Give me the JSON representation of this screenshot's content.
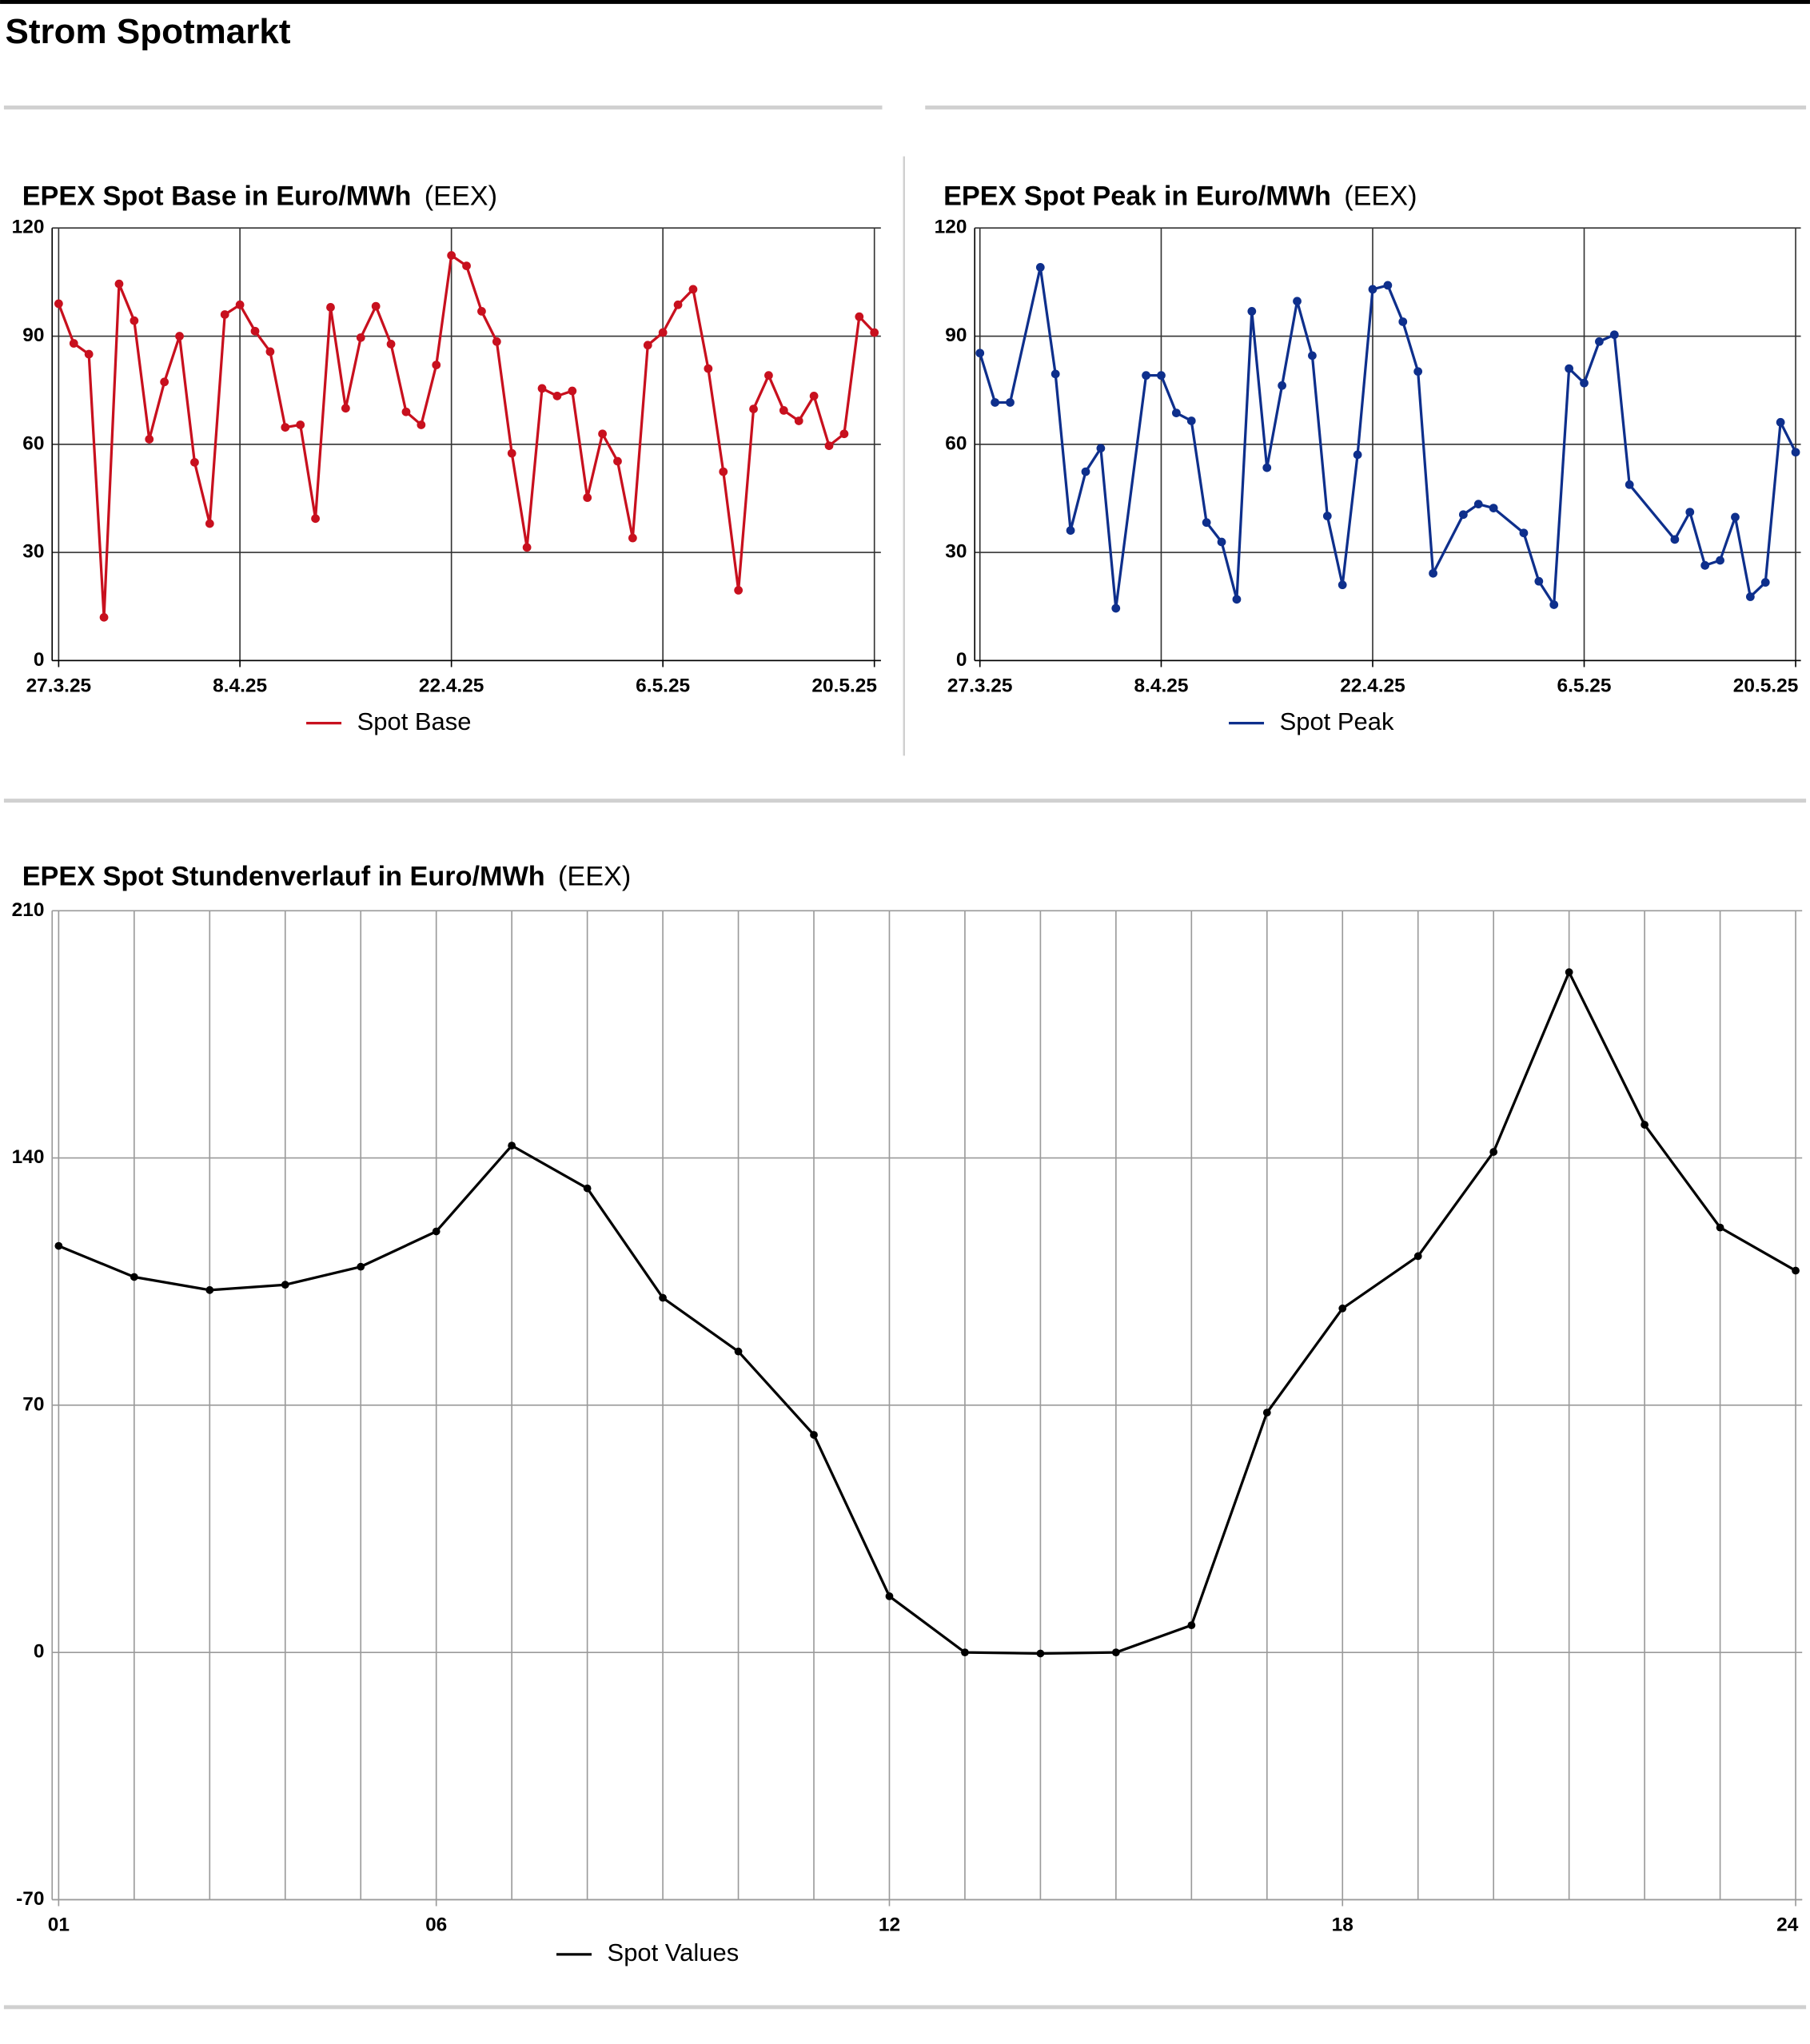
{
  "header": {
    "title": "Strom Spotmarkt"
  },
  "chart_data": [
    {
      "type": "line",
      "title": "EPEX Spot Base in Euro/MWh",
      "source": "(EEX)",
      "categories": [
        "27.3.25",
        null,
        null,
        null,
        null,
        null,
        null,
        null,
        null,
        null,
        null,
        null,
        "8.4.25",
        null,
        null,
        null,
        null,
        null,
        null,
        null,
        null,
        null,
        null,
        null,
        null,
        null,
        "22.4.25",
        null,
        null,
        null,
        null,
        null,
        null,
        null,
        null,
        null,
        null,
        null,
        null,
        null,
        "6.5.25",
        null,
        null,
        null,
        null,
        null,
        null,
        null,
        null,
        null,
        null,
        null,
        null,
        null,
        "20.5.25"
      ],
      "series": [
        {
          "name": "Spot Base",
          "color": "#c8101e",
          "values": [
            99,
            88,
            85,
            12,
            104.5,
            94.3,
            61.4,
            77.3,
            90,
            55,
            38,
            96,
            98.7,
            91.4,
            85.7,
            64.7,
            65.4,
            39.4,
            98,
            70,
            89.6,
            98.3,
            87.8,
            69,
            65.4,
            82,
            112.4,
            109.5,
            96.9,
            88.5,
            57.5,
            31.4,
            75.5,
            73.4,
            74.8,
            45.2,
            62.9,
            55.3,
            34,
            87.5,
            91,
            98.7,
            103,
            81,
            52.4,
            19.5,
            69.8,
            79.1,
            69.4,
            66.5,
            73.4,
            59.6,
            62.9,
            95.4,
            91
          ]
        }
      ],
      "ylim": [
        0,
        120
      ],
      "yticks": [
        0,
        30,
        60,
        90,
        120
      ],
      "grid": true
    },
    {
      "type": "line",
      "title": "EPEX Spot Peak in Euro/MWh",
      "source": "(EEX)",
      "categories": [
        "27.3.25",
        null,
        null,
        null,
        null,
        null,
        null,
        null,
        null,
        null,
        null,
        null,
        "8.4.25",
        null,
        null,
        null,
        null,
        null,
        null,
        null,
        null,
        null,
        null,
        null,
        null,
        null,
        "22.4.25",
        null,
        null,
        null,
        null,
        null,
        null,
        null,
        null,
        null,
        null,
        null,
        null,
        null,
        "6.5.25",
        null,
        null,
        null,
        null,
        null,
        null,
        null,
        null,
        null,
        null,
        null,
        null,
        null,
        "20.5.25"
      ],
      "series": [
        {
          "name": "Spot Peak",
          "color": "#0e2f8c",
          "values": [
            85.3,
            71.6,
            71.6,
            null,
            109.1,
            79.5,
            36.1,
            52.4,
            58.9,
            14.5,
            null,
            79.1,
            79.1,
            68.7,
            66.5,
            38.3,
            32.9,
            17,
            96.9,
            53.5,
            76.3,
            99.7,
            84.6,
            40.1,
            21,
            57.1,
            103,
            104.1,
            94,
            80.2,
            24.2,
            null,
            40.5,
            43.4,
            42.3,
            null,
            35.4,
            22,
            15.5,
            81,
            77,
            88.5,
            90.4,
            48.8,
            null,
            null,
            33.6,
            41.2,
            26.4,
            27.8,
            39.8,
            17.7,
            21.7,
            66.1,
            57.8
          ]
        }
      ],
      "ylim": [
        0,
        120
      ],
      "yticks": [
        0,
        30,
        60,
        90,
        120
      ],
      "grid": true
    },
    {
      "type": "line",
      "title": "EPEX Spot Stundenverlauf in Euro/MWh",
      "source": "(EEX)",
      "categories": [
        "01",
        null,
        null,
        null,
        null,
        "06",
        null,
        null,
        null,
        null,
        null,
        "12",
        null,
        null,
        null,
        null,
        null,
        "18",
        null,
        null,
        null,
        null,
        null,
        "24"
      ],
      "series": [
        {
          "name": "Spot Values",
          "color": "#000000",
          "values": [
            115.1,
            106.3,
            102.6,
            104.1,
            109.2,
            119.2,
            143.5,
            131.4,
            100.4,
            85.2,
            61.6,
            15.9,
            0,
            -0.3,
            0,
            7.7,
            67.9,
            97.4,
            112.2,
            141.7,
            192.6,
            149.4,
            120.3,
            108.1
          ]
        }
      ],
      "ylim": [
        -70,
        210
      ],
      "yticks": [
        -70,
        0,
        70,
        140,
        210
      ],
      "grid": true
    }
  ]
}
